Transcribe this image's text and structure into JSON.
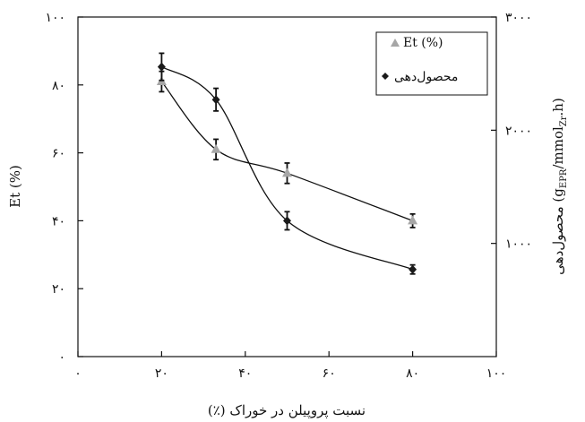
{
  "chart_data": {
    "type": "scatter",
    "xlabel": "نسبت پروپیلن در خوراک (٪)",
    "ylabel": "Et (%)",
    "y2label_prefix": "محصول‌دهی ",
    "y2label_unit_open": "(g",
    "y2label_unit_sub1": "EPR",
    "y2label_unit_mid": "/mmol",
    "y2label_unit_sub2": "Zr",
    "y2label_unit_close": ".h)",
    "xlim": [
      0,
      100
    ],
    "ylim": [
      0,
      100
    ],
    "y2lim": [
      0,
      3000
    ],
    "x_ticks": [
      {
        "value": 0,
        "label": "۰"
      },
      {
        "value": 20,
        "label": "۲۰"
      },
      {
        "value": 40,
        "label": "۴۰"
      },
      {
        "value": 60,
        "label": "۶۰"
      },
      {
        "value": 80,
        "label": "۸۰"
      },
      {
        "value": 100,
        "label": "۱۰۰"
      }
    ],
    "y_ticks": [
      {
        "value": 0,
        "label": "۰"
      },
      {
        "value": 20,
        "label": "۲۰"
      },
      {
        "value": 40,
        "label": "۴۰"
      },
      {
        "value": 60,
        "label": "۶۰"
      },
      {
        "value": 80,
        "label": "۸۰"
      },
      {
        "value": 100,
        "label": "۱۰۰"
      }
    ],
    "y2_ticks": [
      {
        "value": 1000,
        "label": "۱۰۰۰"
      },
      {
        "value": 2000,
        "label": "۲۰۰۰"
      },
      {
        "value": 3000,
        "label": "۳۰۰۰"
      }
    ],
    "legend_position": "top-right",
    "series": [
      {
        "name": "Et (%)",
        "axis": "left",
        "marker": "triangle",
        "color": "#a6a6a6",
        "x": [
          20,
          33,
          50,
          80
        ],
        "y": [
          81,
          61,
          54,
          40
        ],
        "error": [
          3,
          3,
          3,
          2
        ]
      },
      {
        "name": "محصول‌دهی",
        "axis": "right",
        "marker": "diamond",
        "color": "#1a1a1a",
        "x": [
          20,
          33,
          50,
          80
        ],
        "y": [
          2560,
          2270,
          1200,
          770
        ],
        "error": [
          120,
          100,
          80,
          40
        ]
      }
    ]
  }
}
